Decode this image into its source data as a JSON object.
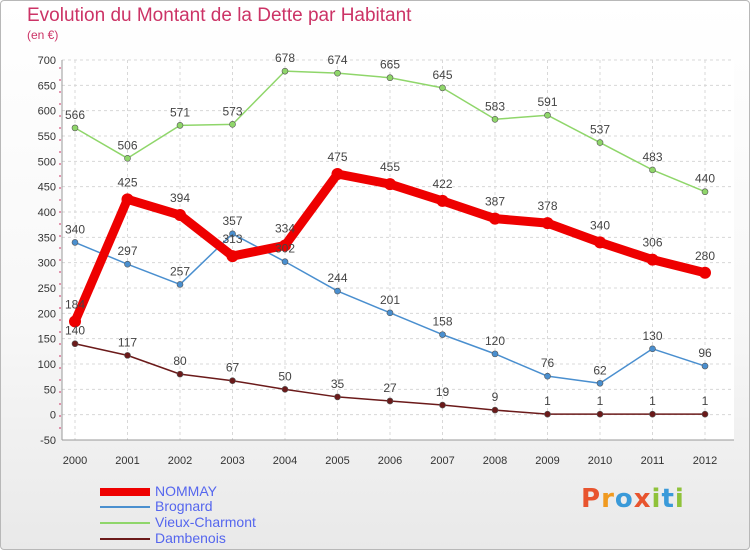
{
  "title": "Evolution du Montant de la Dette par Habitant",
  "subtitle": "(en €)",
  "logo": {
    "text": "Proxiti",
    "letter_colors": [
      "#e8542e",
      "#f09a20",
      "#3a9ad9",
      "#e8542e",
      "#8fc23a",
      "#3a9ad9",
      "#8fc23a"
    ]
  },
  "chart_data": {
    "type": "line",
    "x": [
      "2000",
      "2001",
      "2002",
      "2003",
      "2004",
      "2005",
      "2006",
      "2007",
      "2008",
      "2009",
      "2010",
      "2011",
      "2012"
    ],
    "ylim": [
      -50,
      700
    ],
    "yticks": [
      "-50",
      "0",
      "50",
      "100",
      "150",
      "200",
      "250",
      "300",
      "350",
      "400",
      "450",
      "500",
      "550",
      "600",
      "650",
      "700"
    ],
    "grid": true,
    "legend_position": "bottom-left",
    "series": [
      {
        "name": "NOMMAY",
        "color": "#ee0000",
        "values": [
          184,
          425,
          394,
          313,
          334,
          475,
          455,
          422,
          387,
          378,
          340,
          306,
          280
        ],
        "labels": [
          "184",
          "425",
          "394",
          "313",
          "334",
          "475",
          "455",
          "422",
          "387",
          "378",
          "340",
          "306",
          "280"
        ]
      },
      {
        "name": "Brognard",
        "color": "#4a8fcf",
        "values": [
          340,
          297,
          257,
          357,
          302,
          244,
          201,
          158,
          120,
          76,
          62,
          130,
          96
        ],
        "labels": [
          "340",
          "297",
          "257",
          "357",
          "302",
          "244",
          "201",
          "158",
          "120",
          "76",
          "62",
          "130",
          "96"
        ]
      },
      {
        "name": "Vieux-Charmont",
        "color": "#8fd66a",
        "values": [
          566,
          506,
          571,
          573,
          678,
          674,
          665,
          645,
          583,
          591,
          537,
          483,
          440
        ],
        "labels": [
          "566",
          "506",
          "571",
          "573",
          "678",
          "674",
          "665",
          "645",
          "583",
          "591",
          "537",
          "483",
          "440"
        ]
      },
      {
        "name": "Dambenois",
        "color": "#6b1a1a",
        "values": [
          140,
          117,
          80,
          67,
          50,
          35,
          27,
          19,
          9,
          1,
          1,
          1,
          1
        ],
        "labels": [
          "140",
          "117",
          "80",
          "67",
          "50",
          "35",
          "27",
          "19",
          "9",
          "1",
          "1",
          "1",
          "1"
        ]
      }
    ]
  }
}
